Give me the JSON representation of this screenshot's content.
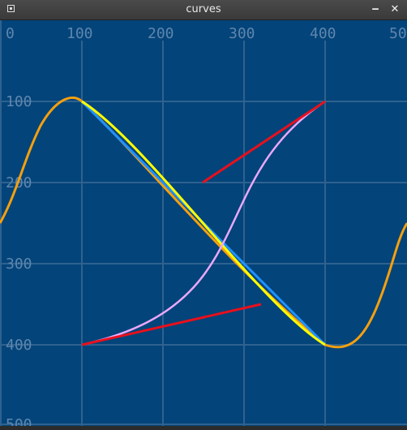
{
  "window": {
    "title": "curves",
    "minimize_symbol": "‒",
    "close_symbol": "✕",
    "app_icon": "window-icon"
  },
  "axes": {
    "x_ticks": [
      "0",
      "100",
      "200",
      "300",
      "400",
      "50"
    ],
    "y_ticks": [
      "100",
      "200",
      "300",
      "400",
      "500"
    ]
  },
  "colors": {
    "background": "#03447a",
    "grid": "#2f628f",
    "tick_label": "#5f86ad",
    "orange_curve": "#f5a00f",
    "blue_line": "#1e90ff",
    "yellow_curve": "#ffff00",
    "pink_curve": "#eca8ff",
    "red_handles": "#e8101c"
  }
}
